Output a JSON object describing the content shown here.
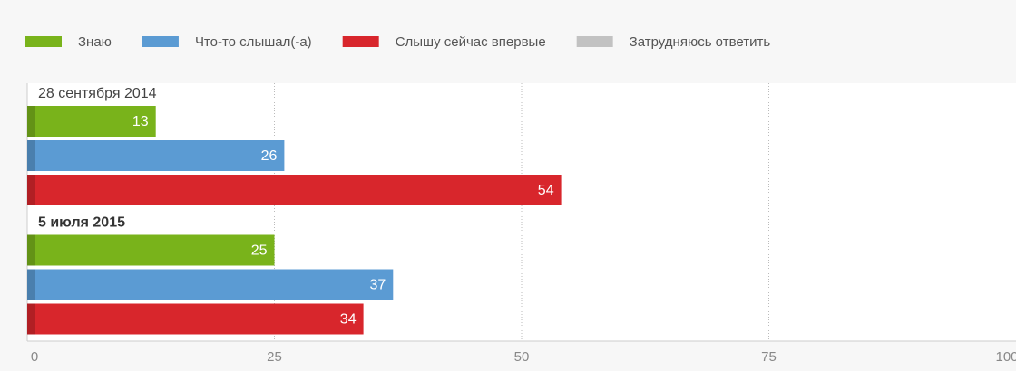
{
  "chart_data": {
    "type": "bar",
    "orientation": "horizontal",
    "categories": [
      "28 сентября 2014",
      "5 июля 2015"
    ],
    "series": [
      {
        "name": "Знаю",
        "color": "#79b31b",
        "values": [
          13,
          25
        ]
      },
      {
        "name": "Что-то слышал(-а)",
        "color": "#5b9bd3",
        "values": [
          26,
          37
        ]
      },
      {
        "name": "Слышу сейчас впервые",
        "color": "#d8262c",
        "values": [
          54,
          34
        ]
      },
      {
        "name": "Затрудняюсь ответить",
        "color": "#c2c2c2",
        "values": [
          null,
          null
        ]
      }
    ],
    "xlim": [
      0,
      100
    ],
    "xticks": [
      0,
      25,
      50,
      75,
      100
    ],
    "grid": true,
    "legend": "top"
  }
}
